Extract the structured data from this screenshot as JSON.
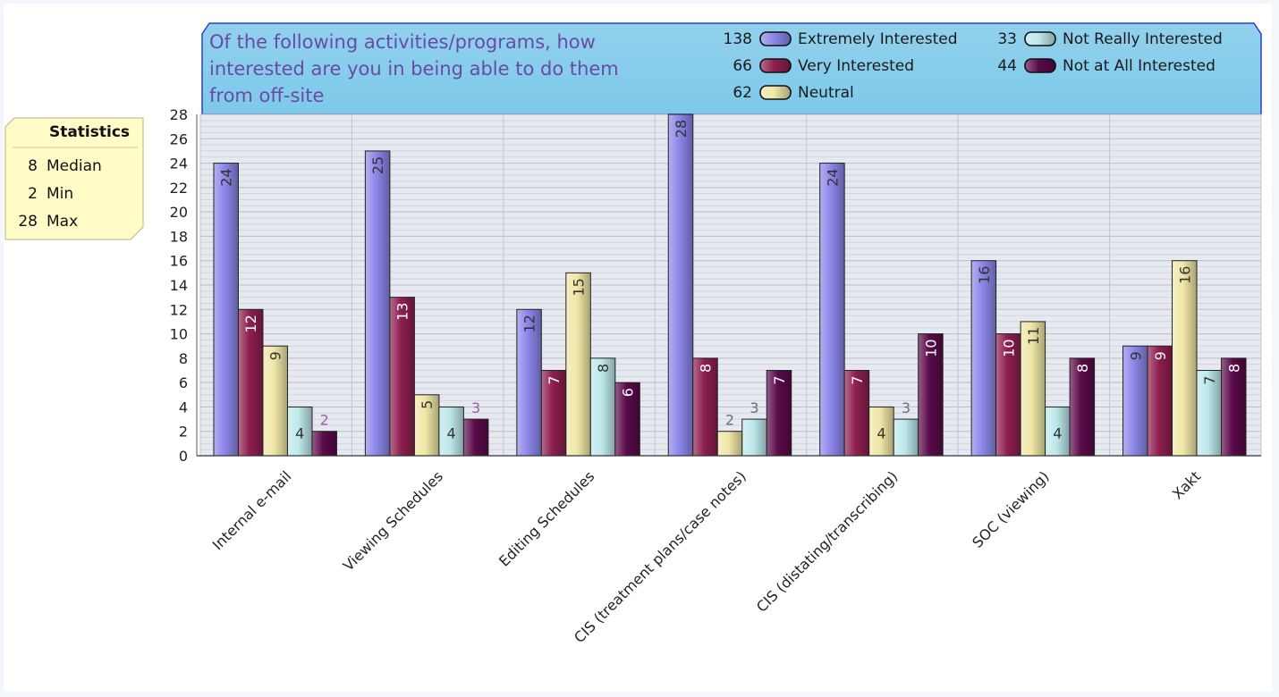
{
  "chart_data": {
    "type": "bar",
    "title": "Of the following activities/programs, how interested are you in being able to do them from off-site",
    "title_lines": [
      "Of the following activities/programs, how",
      "interested are you in being able to do them",
      "from off-site"
    ],
    "categories": [
      "Internal e-mail",
      "Viewing Schedules",
      "Editing Schedules",
      "CIS (treatment plans/case notes)",
      "CIS (distating/transcribing)",
      "SOC (viewing)",
      "Xakt"
    ],
    "series": [
      {
        "name": "Extremely Interested",
        "total": "138",
        "color": "#8b86e8",
        "values": [
          24,
          25,
          12,
          28,
          24,
          16,
          9
        ]
      },
      {
        "name": "Very Interested",
        "total": "66",
        "color": "#8e1f4f",
        "values": [
          12,
          13,
          7,
          8,
          7,
          10,
          9
        ]
      },
      {
        "name": "Neutral",
        "total": "62",
        "color": "#efe6a6",
        "values": [
          9,
          5,
          15,
          2,
          4,
          11,
          16
        ]
      },
      {
        "name": "Not Really Interested",
        "total": "33",
        "color": "#bde8ea",
        "values": [
          4,
          4,
          8,
          3,
          3,
          4,
          7
        ]
      },
      {
        "name": "Not at All Interested",
        "total": "44",
        "color": "#5a0a4a",
        "values": [
          2,
          3,
          6,
          7,
          10,
          8,
          8
        ]
      }
    ],
    "ylim": [
      0,
      28
    ],
    "yticks": [
      0,
      2,
      4,
      6,
      8,
      10,
      12,
      14,
      16,
      18,
      20,
      22,
      24,
      26,
      28
    ],
    "grid": true,
    "legend_position": "top-right"
  },
  "statistics": {
    "title": "Statistics",
    "rows": [
      {
        "value": "8",
        "label": "Median"
      },
      {
        "value": "2",
        "label": "Min"
      },
      {
        "value": "28",
        "label": "Max"
      }
    ]
  },
  "colors": {
    "header_bg": "#7dc9ea",
    "header_border": "#2a3fd0",
    "title_text": "#6a4aa6",
    "plot_bg": "#e6e9ef",
    "stats_bg": "#fffcc8"
  }
}
